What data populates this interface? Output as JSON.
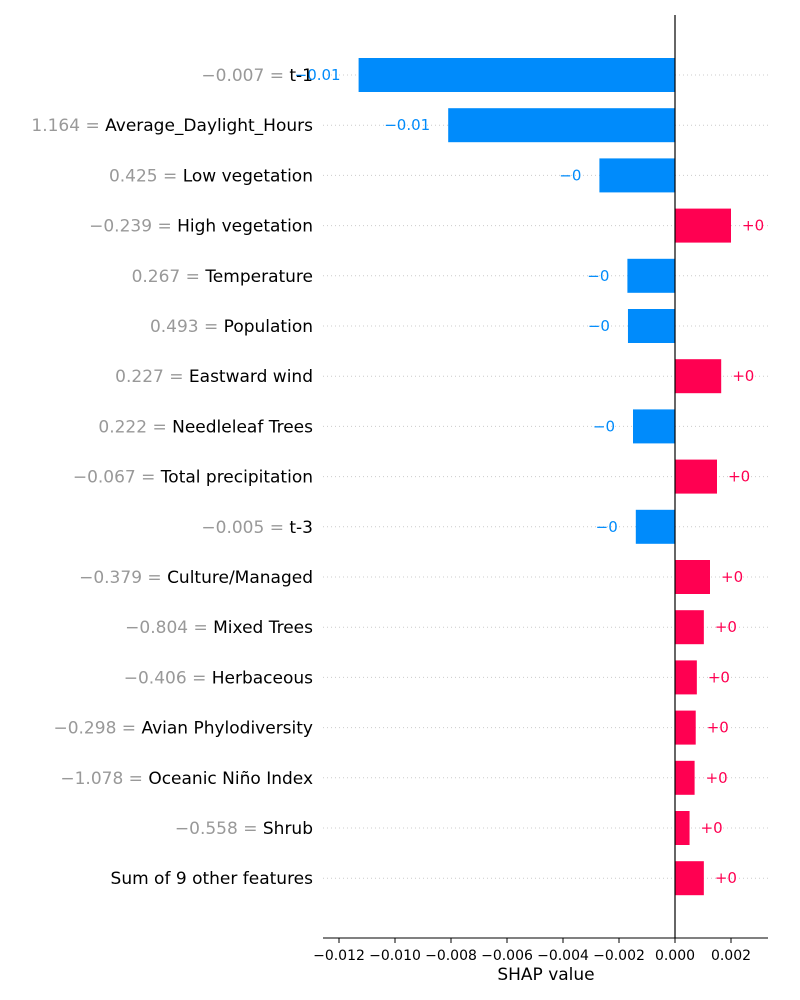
{
  "chart_data": {
    "type": "bar",
    "orientation": "horizontal",
    "xlabel": "SHAP value",
    "xlim": [
      -0.0125,
      0.0033
    ],
    "xticks": [
      {
        "value": -0.012,
        "label": "−0.012"
      },
      {
        "value": -0.01,
        "label": "−0.010"
      },
      {
        "value": -0.008,
        "label": "−0.008"
      },
      {
        "value": -0.006,
        "label": "−0.006"
      },
      {
        "value": -0.004,
        "label": "−0.004"
      },
      {
        "value": -0.002,
        "label": "−0.002"
      },
      {
        "value": 0.0,
        "label": "0.000"
      },
      {
        "value": 0.002,
        "label": "0.002"
      }
    ],
    "grid": "horizontal dotted per row",
    "colors": {
      "positive": "#ff0051",
      "negative": "#008bfb",
      "feature_value": "#999999",
      "axis": "#000000"
    },
    "features": [
      {
        "feature_value": "−0.007 =",
        "name": "t-1",
        "shap": -0.0113,
        "label": "−0.01"
      },
      {
        "feature_value": "1.164 =",
        "name": "Average_Daylight_Hours",
        "shap": -0.0081,
        "label": "−0.01"
      },
      {
        "feature_value": "0.425 =",
        "name": "Low vegetation",
        "shap": -0.0027,
        "label": "−0"
      },
      {
        "feature_value": "−0.239 =",
        "name": "High vegetation",
        "shap": 0.002,
        "label": "+0"
      },
      {
        "feature_value": "0.267 =",
        "name": "Temperature",
        "shap": -0.0017,
        "label": "−0"
      },
      {
        "feature_value": "0.493 =",
        "name": "Population",
        "shap": -0.00168,
        "label": "−0"
      },
      {
        "feature_value": "0.227 =",
        "name": "Eastward wind",
        "shap": 0.00165,
        "label": "+0"
      },
      {
        "feature_value": "0.222 =",
        "name": "Needleleaf Trees",
        "shap": -0.0015,
        "label": "−0"
      },
      {
        "feature_value": "−0.067 =",
        "name": "Total precipitation",
        "shap": 0.0015,
        "label": "+0"
      },
      {
        "feature_value": "−0.005 =",
        "name": "t-3",
        "shap": -0.0014,
        "label": "−0"
      },
      {
        "feature_value": "−0.379 =",
        "name": "Culture/Managed",
        "shap": 0.00125,
        "label": "+0"
      },
      {
        "feature_value": "−0.804 =",
        "name": "Mixed Trees",
        "shap": 0.00103,
        "label": "+0"
      },
      {
        "feature_value": "−0.406 =",
        "name": "Herbaceous",
        "shap": 0.00078,
        "label": "+0"
      },
      {
        "feature_value": "−0.298 =",
        "name": "Avian Phylodiversity",
        "shap": 0.00074,
        "label": "+0"
      },
      {
        "feature_value": "−1.078 =",
        "name": "Oceanic Niño Index",
        "shap": 0.0007,
        "label": "+0"
      },
      {
        "feature_value": "−0.558 =",
        "name": "Shrub",
        "shap": 0.00052,
        "label": "+0"
      },
      {
        "feature_value": "",
        "name": "Sum of 9 other features",
        "shap": 0.00103,
        "label": "+0"
      }
    ]
  }
}
